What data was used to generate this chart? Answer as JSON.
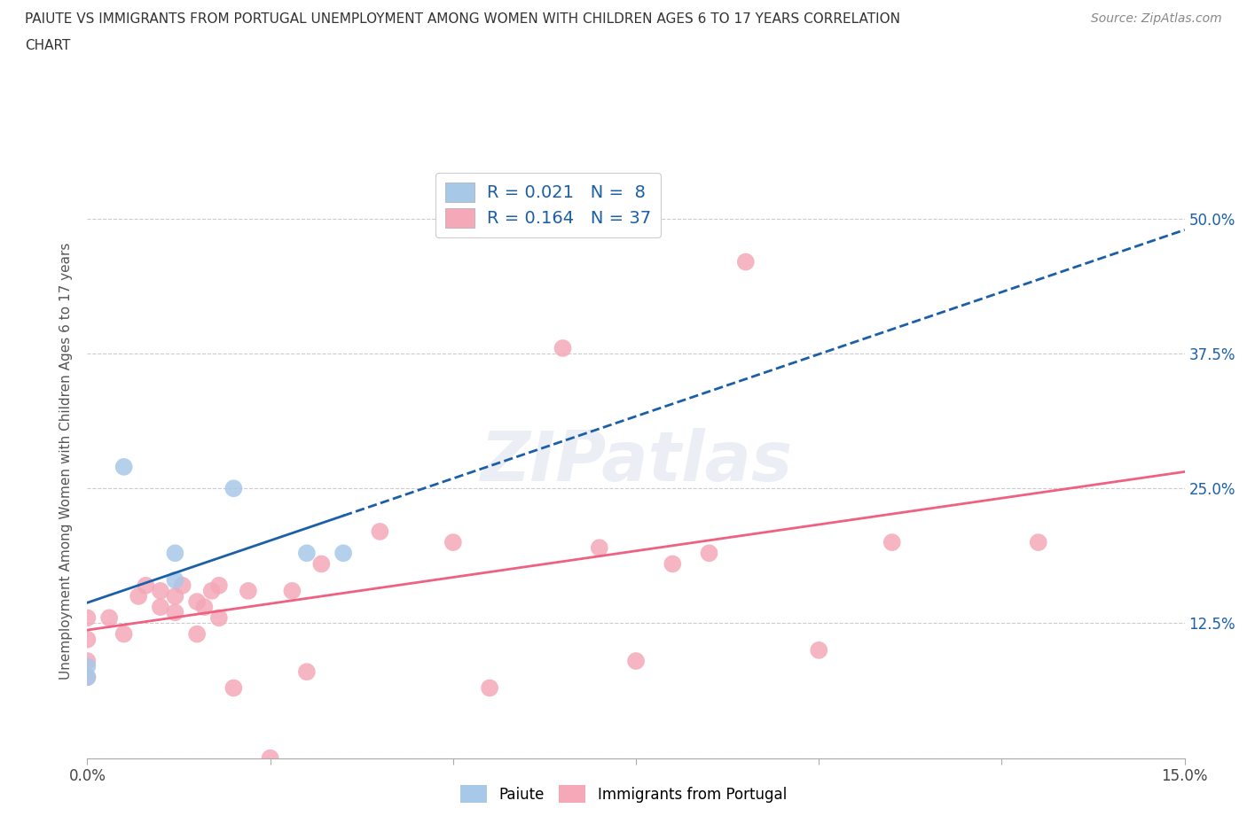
{
  "title_line1": "PAIUTE VS IMMIGRANTS FROM PORTUGAL UNEMPLOYMENT AMONG WOMEN WITH CHILDREN AGES 6 TO 17 YEARS CORRELATION",
  "title_line2": "CHART",
  "source_text": "Source: ZipAtlas.com",
  "ylabel": "Unemployment Among Women with Children Ages 6 to 17 years",
  "xlim": [
    0.0,
    0.15
  ],
  "ylim": [
    0.0,
    0.55
  ],
  "xtick_vals": [
    0.0,
    0.025,
    0.05,
    0.075,
    0.1,
    0.125,
    0.15
  ],
  "ytick_vals": [
    0.0,
    0.125,
    0.25,
    0.375,
    0.5
  ],
  "ytick_labels_right": [
    "",
    "12.5%",
    "25.0%",
    "37.5%",
    "50.0%"
  ],
  "paiute_R": 0.021,
  "paiute_N": 8,
  "portugal_R": 0.164,
  "portugal_N": 37,
  "paiute_color": "#a8c8e8",
  "portugal_color": "#f4a8b8",
  "paiute_line_color": "#1a5fa8",
  "portugal_line_color": "#f06080",
  "legend_text_color": "#1a5fa8",
  "paiute_x": [
    0.0,
    0.0,
    0.005,
    0.012,
    0.012,
    0.02,
    0.03,
    0.035
  ],
  "paiute_y": [
    0.075,
    0.085,
    0.27,
    0.165,
    0.19,
    0.25,
    0.19,
    0.19
  ],
  "portugal_x": [
    0.0,
    0.0,
    0.0,
    0.0,
    0.003,
    0.005,
    0.007,
    0.008,
    0.01,
    0.01,
    0.012,
    0.012,
    0.013,
    0.015,
    0.015,
    0.016,
    0.017,
    0.018,
    0.018,
    0.02,
    0.022,
    0.025,
    0.028,
    0.03,
    0.032,
    0.04,
    0.05,
    0.055,
    0.065,
    0.07,
    0.075,
    0.08,
    0.085,
    0.09,
    0.1,
    0.11,
    0.13
  ],
  "portugal_y": [
    0.075,
    0.09,
    0.11,
    0.13,
    0.13,
    0.115,
    0.15,
    0.16,
    0.14,
    0.155,
    0.135,
    0.15,
    0.16,
    0.115,
    0.145,
    0.14,
    0.155,
    0.16,
    0.13,
    0.065,
    0.155,
    0.0,
    0.155,
    0.08,
    0.18,
    0.21,
    0.2,
    0.065,
    0.38,
    0.195,
    0.09,
    0.18,
    0.19,
    0.46,
    0.1,
    0.2,
    0.2
  ],
  "background_color": "#ffffff",
  "grid_color": "#cccccc"
}
